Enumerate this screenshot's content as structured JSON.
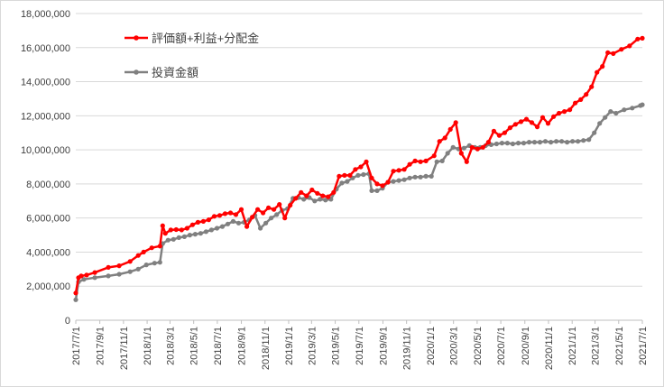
{
  "chart_data": {
    "type": "line",
    "title": "",
    "xlabel": "",
    "ylabel": "",
    "ylim": [
      0,
      18000000
    ],
    "yticks": [
      0,
      2000000,
      4000000,
      6000000,
      8000000,
      10000000,
      12000000,
      14000000,
      16000000,
      18000000
    ],
    "ytick_labels": [
      "0",
      "2,000,000",
      "4,000,000",
      "6,000,000",
      "8,000,000",
      "10,000,000",
      "12,000,000",
      "14,000,000",
      "16,000,000",
      "18,000,000"
    ],
    "x_ticks": [
      "2017/7/1",
      "2017/9/1",
      "2017/11/1",
      "2018/1/1",
      "2018/3/1",
      "2018/5/1",
      "2018/7/1",
      "2018/9/1",
      "2018/11/1",
      "2019/1/1",
      "2019/3/1",
      "2019/5/1",
      "2019/7/1",
      "2019/9/1",
      "2019/11/1",
      "2020/1/1",
      "2020/3/1",
      "2020/5/1",
      "2020/7/1",
      "2020/9/1",
      "2020/11/1",
      "2021/1/1",
      "2021/3/1",
      "2021/5/1",
      "2021/7/1"
    ],
    "x_range": [
      "2017/7/1",
      "2021/7/1"
    ],
    "grid": "horizontal",
    "legend_position": "top-left",
    "series": [
      {
        "name": "評価額+利益+分配金",
        "color": "#ff0000",
        "points": [
          [
            "2017/7/1",
            1600000
          ],
          [
            "2017/7/8",
            2500000
          ],
          [
            "2017/7/15",
            2600000
          ],
          [
            "2017/7/29",
            2650000
          ],
          [
            "2017/8/19",
            2800000
          ],
          [
            "2017/9/23",
            3100000
          ],
          [
            "2017/10/21",
            3200000
          ],
          [
            "2017/11/18",
            3450000
          ],
          [
            "2017/12/9",
            3800000
          ],
          [
            "2017/12/23",
            4000000
          ],
          [
            "2018/1/13",
            4250000
          ],
          [
            "2018/2/3",
            4350000
          ],
          [
            "2018/2/10",
            5550000
          ],
          [
            "2018/2/17",
            5100000
          ],
          [
            "2018/3/3",
            5300000
          ],
          [
            "2018/3/17",
            5320000
          ],
          [
            "2018/3/31",
            5300000
          ],
          [
            "2018/4/14",
            5400000
          ],
          [
            "2018/4/28",
            5600000
          ],
          [
            "2018/5/12",
            5750000
          ],
          [
            "2018/5/26",
            5800000
          ],
          [
            "2018/6/9",
            5900000
          ],
          [
            "2018/6/23",
            6100000
          ],
          [
            "2018/7/7",
            6150000
          ],
          [
            "2018/7/21",
            6250000
          ],
          [
            "2018/8/4",
            6300000
          ],
          [
            "2018/8/18",
            6200000
          ],
          [
            "2018/9/1",
            6500000
          ],
          [
            "2018/9/15",
            5500000
          ],
          [
            "2018/9/29",
            6050000
          ],
          [
            "2018/10/13",
            6500000
          ],
          [
            "2018/10/27",
            6300000
          ],
          [
            "2018/11/10",
            6600000
          ],
          [
            "2018/11/24",
            6500000
          ],
          [
            "2018/12/8",
            6800000
          ],
          [
            "2018/12/22",
            6000000
          ],
          [
            "2019/1/5",
            6750000
          ],
          [
            "2019/1/19",
            7150000
          ],
          [
            "2019/2/2",
            7500000
          ],
          [
            "2019/2/16",
            7300000
          ],
          [
            "2019/3/2",
            7650000
          ],
          [
            "2019/3/16",
            7450000
          ],
          [
            "2019/3/30",
            7300000
          ],
          [
            "2019/4/13",
            7250000
          ],
          [
            "2019/4/27",
            7500000
          ],
          [
            "2019/5/11",
            8450000
          ],
          [
            "2019/5/25",
            8500000
          ],
          [
            "2019/6/8",
            8500000
          ],
          [
            "2019/6/22",
            8850000
          ],
          [
            "2019/7/6",
            9000000
          ],
          [
            "2019/7/20",
            9300000
          ],
          [
            "2019/8/3",
            8350000
          ],
          [
            "2019/8/17",
            8000000
          ],
          [
            "2019/8/31",
            7900000
          ],
          [
            "2019/9/14",
            8100000
          ],
          [
            "2019/9/28",
            8750000
          ],
          [
            "2019/10/12",
            8800000
          ],
          [
            "2019/10/26",
            8850000
          ],
          [
            "2019/11/9",
            9150000
          ],
          [
            "2019/11/23",
            9350000
          ],
          [
            "2019/12/7",
            9300000
          ],
          [
            "2019/12/21",
            9350000
          ],
          [
            "2020/1/11",
            9650000
          ],
          [
            "2020/1/25",
            10500000
          ],
          [
            "2020/2/8",
            10700000
          ],
          [
            "2020/2/22",
            11200000
          ],
          [
            "2020/3/7",
            11600000
          ],
          [
            "2020/3/21",
            9800000
          ],
          [
            "2020/4/4",
            9300000
          ],
          [
            "2020/4/18",
            10150000
          ],
          [
            "2020/5/2",
            10050000
          ],
          [
            "2020/5/16",
            10150000
          ],
          [
            "2020/5/30",
            10450000
          ],
          [
            "2020/6/13",
            11100000
          ],
          [
            "2020/6/27",
            10850000
          ],
          [
            "2020/7/11",
            11000000
          ],
          [
            "2020/7/25",
            11300000
          ],
          [
            "2020/8/8",
            11500000
          ],
          [
            "2020/8/22",
            11650000
          ],
          [
            "2020/9/5",
            11800000
          ],
          [
            "2020/9/19",
            11600000
          ],
          [
            "2020/10/3",
            11350000
          ],
          [
            "2020/10/17",
            11900000
          ],
          [
            "2020/10/31",
            11550000
          ],
          [
            "2020/11/14",
            11950000
          ],
          [
            "2020/11/28",
            12150000
          ],
          [
            "2020/12/12",
            12250000
          ],
          [
            "2020/12/26",
            12350000
          ],
          [
            "2021/1/9",
            12750000
          ],
          [
            "2021/1/23",
            12950000
          ],
          [
            "2021/2/6",
            13250000
          ],
          [
            "2021/2/20",
            13700000
          ],
          [
            "2021/3/6",
            14550000
          ],
          [
            "2021/3/20",
            14900000
          ],
          [
            "2021/4/3",
            15700000
          ],
          [
            "2021/4/17",
            15650000
          ],
          [
            "2021/5/8",
            15900000
          ],
          [
            "2021/5/29",
            16100000
          ],
          [
            "2021/6/19",
            16500000
          ],
          [
            "2021/7/1",
            16550000
          ]
        ]
      },
      {
        "name": "投資金額",
        "color": "#808080",
        "points": [
          [
            "2017/7/1",
            1200000
          ],
          [
            "2017/7/8",
            2250000
          ],
          [
            "2017/7/22",
            2400000
          ],
          [
            "2017/8/19",
            2500000
          ],
          [
            "2017/9/23",
            2600000
          ],
          [
            "2017/10/21",
            2700000
          ],
          [
            "2017/11/18",
            2850000
          ],
          [
            "2017/12/9",
            3000000
          ],
          [
            "2017/12/30",
            3250000
          ],
          [
            "2018/1/20",
            3350000
          ],
          [
            "2018/2/3",
            3400000
          ],
          [
            "2018/2/10",
            4500000
          ],
          [
            "2018/2/24",
            4700000
          ],
          [
            "2018/3/10",
            4750000
          ],
          [
            "2018/3/24",
            4850000
          ],
          [
            "2018/4/7",
            4900000
          ],
          [
            "2018/4/21",
            5000000
          ],
          [
            "2018/5/5",
            5050000
          ],
          [
            "2018/5/19",
            5100000
          ],
          [
            "2018/6/2",
            5200000
          ],
          [
            "2018/6/16",
            5300000
          ],
          [
            "2018/6/30",
            5400000
          ],
          [
            "2018/7/14",
            5500000
          ],
          [
            "2018/7/28",
            5650000
          ],
          [
            "2018/8/11",
            5800000
          ],
          [
            "2018/8/25",
            5700000
          ],
          [
            "2018/9/8",
            5750000
          ],
          [
            "2018/9/22",
            5900000
          ],
          [
            "2018/10/6",
            6150000
          ],
          [
            "2018/10/20",
            5400000
          ],
          [
            "2018/11/3",
            5700000
          ],
          [
            "2018/11/17",
            6000000
          ],
          [
            "2018/12/1",
            6200000
          ],
          [
            "2018/12/15",
            6450000
          ],
          [
            "2018/12/29",
            6550000
          ],
          [
            "2019/1/12",
            7150000
          ],
          [
            "2019/1/26",
            7200000
          ],
          [
            "2019/2/9",
            7100000
          ],
          [
            "2019/2/23",
            7200000
          ],
          [
            "2019/3/9",
            7000000
          ],
          [
            "2019/3/23",
            7100000
          ],
          [
            "2019/4/6",
            7050000
          ],
          [
            "2019/4/20",
            7100000
          ],
          [
            "2019/5/4",
            7700000
          ],
          [
            "2019/5/18",
            8050000
          ],
          [
            "2019/6/1",
            8150000
          ],
          [
            "2019/6/15",
            8350000
          ],
          [
            "2019/6/29",
            8500000
          ],
          [
            "2019/7/13",
            8550000
          ],
          [
            "2019/7/27",
            8600000
          ],
          [
            "2019/8/3",
            7600000
          ],
          [
            "2019/8/17",
            7600000
          ],
          [
            "2019/8/31",
            7750000
          ],
          [
            "2019/9/14",
            8100000
          ],
          [
            "2019/9/28",
            8150000
          ],
          [
            "2019/10/12",
            8200000
          ],
          [
            "2019/10/26",
            8250000
          ],
          [
            "2019/11/9",
            8350000
          ],
          [
            "2019/11/23",
            8400000
          ],
          [
            "2019/12/7",
            8400000
          ],
          [
            "2019/12/21",
            8450000
          ],
          [
            "2020/1/4",
            8450000
          ],
          [
            "2020/1/18",
            9300000
          ],
          [
            "2020/2/1",
            9350000
          ],
          [
            "2020/2/15",
            9800000
          ],
          [
            "2020/2/29",
            10150000
          ],
          [
            "2020/3/14",
            10050000
          ],
          [
            "2020/3/28",
            10100000
          ],
          [
            "2020/4/11",
            10250000
          ],
          [
            "2020/4/25",
            10150000
          ],
          [
            "2020/5/9",
            10150000
          ],
          [
            "2020/5/23",
            10250000
          ],
          [
            "2020/6/6",
            10300000
          ],
          [
            "2020/6/20",
            10350000
          ],
          [
            "2020/7/4",
            10400000
          ],
          [
            "2020/7/18",
            10400000
          ],
          [
            "2020/8/1",
            10350000
          ],
          [
            "2020/8/15",
            10400000
          ],
          [
            "2020/8/29",
            10400000
          ],
          [
            "2020/9/12",
            10450000
          ],
          [
            "2020/9/26",
            10450000
          ],
          [
            "2020/10/10",
            10450000
          ],
          [
            "2020/10/24",
            10500000
          ],
          [
            "2020/11/7",
            10450000
          ],
          [
            "2020/11/21",
            10500000
          ],
          [
            "2020/12/5",
            10500000
          ],
          [
            "2020/12/19",
            10450000
          ],
          [
            "2021/1/2",
            10500000
          ],
          [
            "2021/1/16",
            10500000
          ],
          [
            "2021/1/30",
            10550000
          ],
          [
            "2021/2/13",
            10600000
          ],
          [
            "2021/2/27",
            11000000
          ],
          [
            "2021/3/13",
            11550000
          ],
          [
            "2021/3/27",
            11900000
          ],
          [
            "2021/4/10",
            12250000
          ],
          [
            "2021/4/24",
            12150000
          ],
          [
            "2021/5/15",
            12350000
          ],
          [
            "2021/6/5",
            12450000
          ],
          [
            "2021/6/26",
            12600000
          ],
          [
            "2021/7/1",
            12650000
          ]
        ]
      }
    ]
  }
}
